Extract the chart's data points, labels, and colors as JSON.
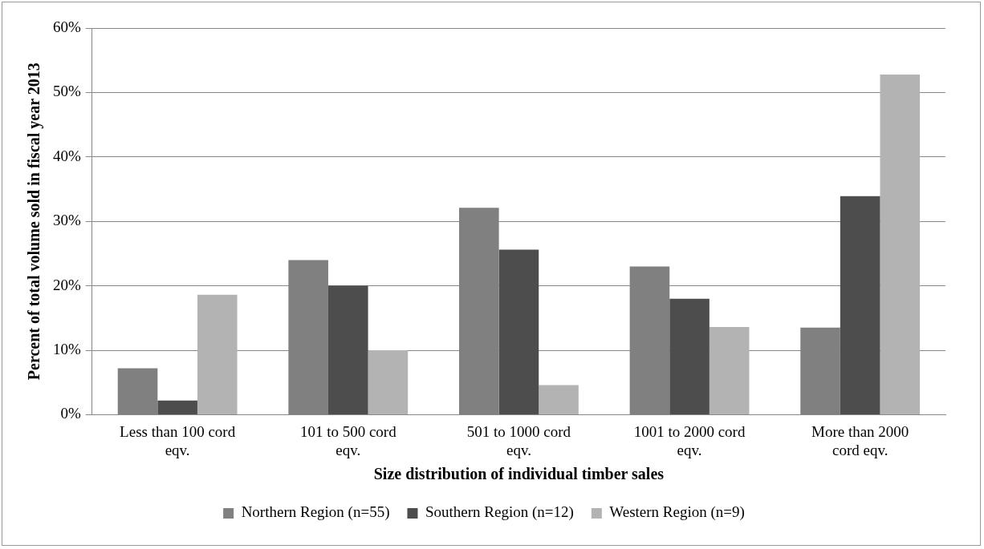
{
  "chart_data": {
    "type": "bar",
    "xlabel": "Size distribution of individual timber sales",
    "ylabel": "Percent of total volume sold in fiscal year 2013",
    "categories": [
      "Less than 100 cord eqv.",
      "101 to 500 cord eqv.",
      "501 to 1000 cord eqv.",
      "1001 to 2000 cord eqv.",
      "More than 2000 cord eqv."
    ],
    "series": [
      {
        "name": "Northern Region (n=55)",
        "color": "#808080",
        "values": [
          7.2,
          24,
          32.1,
          23,
          13.5
        ]
      },
      {
        "name": "Southern Region (n=12)",
        "color": "#4d4d4d",
        "values": [
          2.2,
          20,
          25.6,
          18,
          33.9
        ]
      },
      {
        "name": "Western Region (n=9)",
        "color": "#b3b3b3",
        "values": [
          18.6,
          10,
          4.6,
          13.6,
          52.8
        ]
      }
    ],
    "ylim": [
      0,
      60
    ],
    "yticks": [
      {
        "value": 0,
        "label": "0%"
      },
      {
        "value": 10,
        "label": "10%"
      },
      {
        "value": 20,
        "label": "20%"
      },
      {
        "value": 30,
        "label": "30%"
      },
      {
        "value": 40,
        "label": "40%"
      },
      {
        "value": 50,
        "label": "50%"
      },
      {
        "value": 60,
        "label": "60%"
      }
    ],
    "grid": "y",
    "legend": "bottom"
  }
}
